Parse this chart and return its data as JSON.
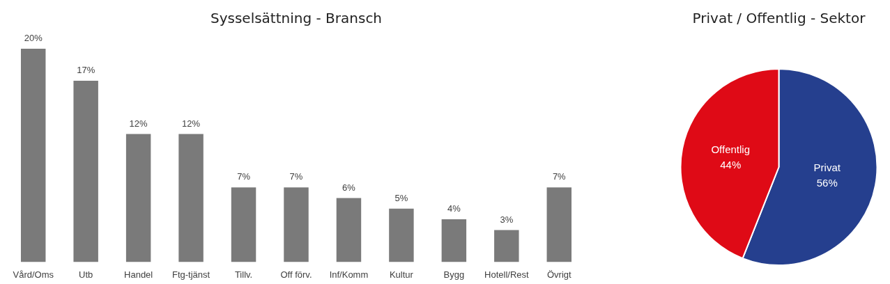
{
  "chart_data": [
    {
      "type": "bar",
      "title": "Sysselsättning - Bransch",
      "categories": [
        "Vård/Oms",
        "Utb",
        "Handel",
        "Ftg-tjänst",
        "Tillv.",
        "Off förv.",
        "Inf/Komm",
        "Kultur",
        "Bygg",
        "Hotell/Rest",
        "Övrigt"
      ],
      "values": [
        20,
        17,
        12,
        12,
        7,
        7,
        6,
        5,
        4,
        3,
        7
      ],
      "value_labels": [
        "20%",
        "17%",
        "12%",
        "12%",
        "7%",
        "7%",
        "6%",
        "5%",
        "4%",
        "3%",
        "7%"
      ],
      "color": "#7a7a7a",
      "tick_labels": "x"
    },
    {
      "type": "pie",
      "title": "Privat / Offentlig - Sektor",
      "categories": [
        "Privat",
        "Offentlig"
      ],
      "values": [
        56,
        44
      ],
      "value_labels": [
        "56%",
        "44%"
      ],
      "colors": [
        "#253f8e",
        "#df0a16"
      ]
    }
  ]
}
